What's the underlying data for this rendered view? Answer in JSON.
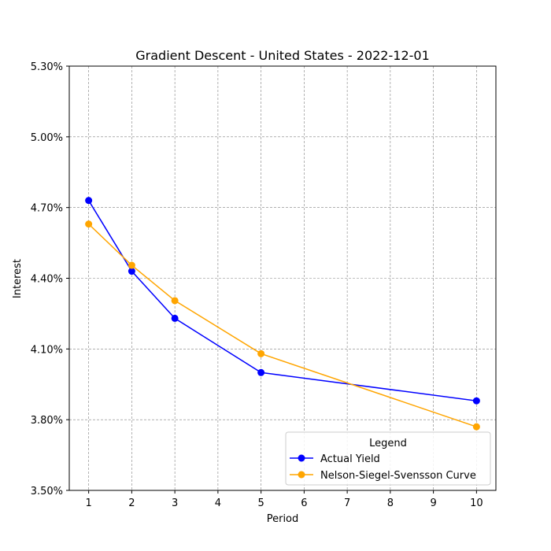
{
  "chart_data": {
    "type": "line",
    "title": "Gradient Descent - United States - 2022-12-01",
    "xlabel": "Period",
    "ylabel": "Interest",
    "x": [
      1,
      2,
      3,
      5,
      10
    ],
    "x_ticks": [
      "1",
      "2",
      "3",
      "4",
      "5",
      "6",
      "7",
      "8",
      "9",
      "10"
    ],
    "y_ticks": [
      "3.50%",
      "3.80%",
      "4.10%",
      "4.40%",
      "4.70%",
      "5.00%",
      "5.30%"
    ],
    "ylim": [
      3.5,
      5.3
    ],
    "grid": true,
    "legend": {
      "title": "Legend",
      "placement": "lower-right"
    },
    "series": [
      {
        "name": "Actual Yield",
        "color": "#0000ff",
        "values": [
          4.73,
          4.43,
          4.23,
          4.0,
          3.88
        ]
      },
      {
        "name": "Nelson-Siegel-Svensson Curve",
        "color": "#ffa500",
        "values": [
          4.63,
          4.455,
          4.305,
          4.08,
          3.77
        ]
      }
    ]
  }
}
